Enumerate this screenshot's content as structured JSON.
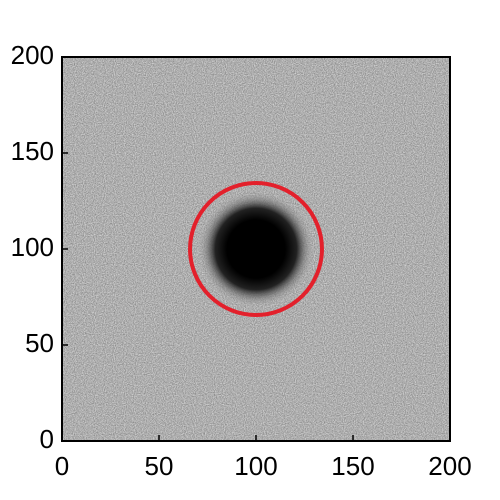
{
  "chart_data": {
    "type": "image",
    "xlim": [
      0,
      200
    ],
    "ylim": [
      0,
      200
    ],
    "xticks": [
      0,
      50,
      100,
      150,
      200
    ],
    "yticks": [
      0,
      50,
      100,
      150,
      200
    ],
    "source": {
      "x": 100,
      "y": 100,
      "radius": 15
    },
    "circle": {
      "x": 100,
      "y": 100,
      "radius": 34,
      "color": "#e3202b"
    }
  }
}
